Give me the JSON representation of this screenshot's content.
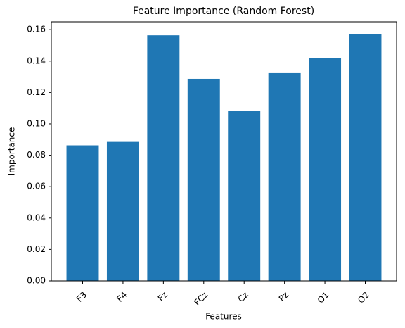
{
  "chart_data": {
    "type": "bar",
    "title": "Feature Importance (Random Forest)",
    "x_label": "Features",
    "y_label": "Importance",
    "categories": [
      "F3",
      "F4",
      "Fz",
      "FCz",
      "Cz",
      "Pz",
      "O1",
      "O2"
    ],
    "values": [
      0.0863,
      0.0885,
      0.1564,
      0.1287,
      0.1082,
      0.1323,
      0.1421,
      0.1573
    ],
    "color": "#1f77b4",
    "ylim": [
      0,
      0.165
    ],
    "yticks": [
      {
        "value": 0,
        "label": "0.00"
      },
      {
        "value": 0.02,
        "label": "0.02"
      },
      {
        "value": 0.04,
        "label": "0.04"
      },
      {
        "value": 0.06,
        "label": "0.06"
      },
      {
        "value": 0.08,
        "label": "0.08"
      },
      {
        "value": 0.1,
        "label": "0.10"
      },
      {
        "value": 0.12,
        "label": "0.12"
      },
      {
        "value": 0.14,
        "label": "0.14"
      },
      {
        "value": 0.16,
        "label": "0.16"
      }
    ],
    "grid": false
  }
}
